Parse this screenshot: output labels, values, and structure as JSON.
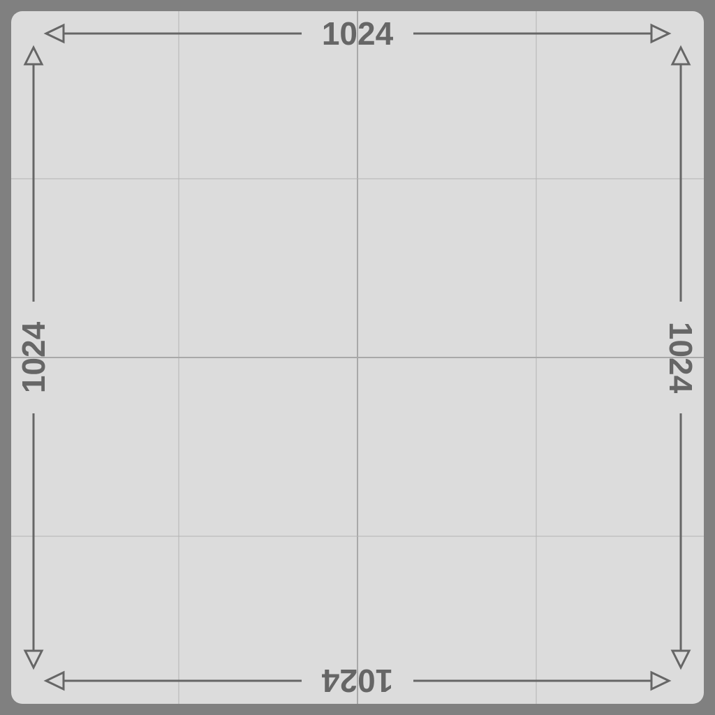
{
  "colors": {
    "backdrop": "#808080",
    "panel": "#dcdcdc",
    "grid_major": "#a8a8a8",
    "grid_minor": "#b4b4b4",
    "arrow": "#666666",
    "label": "#666666"
  },
  "labels": {
    "top": "1024",
    "bottom": "1024",
    "left": "1024",
    "right": "1024"
  },
  "grid": {
    "columns": 4,
    "rows": 4
  },
  "icons": {
    "arrowhead": "open-triangle-arrowhead-icon"
  }
}
